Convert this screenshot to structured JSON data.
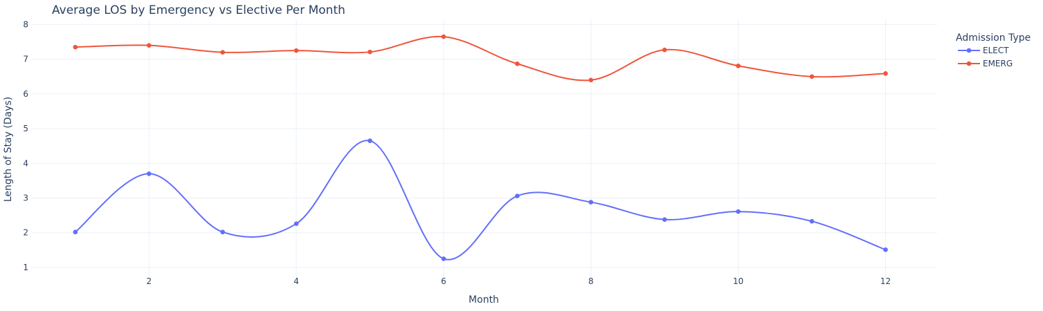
{
  "chart_data": {
    "type": "line",
    "title": "Average LOS by Emergency vs Elective Per Month",
    "xlabel": "Month",
    "ylabel": "Length of Stay (Days)",
    "xlim": [
      0.4,
      12.7
    ],
    "ylim": [
      0.7,
      8.15
    ],
    "x_ticks": [
      2,
      4,
      6,
      8,
      10,
      12
    ],
    "y_ticks": [
      1,
      2,
      3,
      4,
      5,
      6,
      7,
      8
    ],
    "grid": true,
    "legend": {
      "title": "Admission Type",
      "placement": "top-right"
    },
    "x": [
      1,
      2,
      3,
      4,
      5,
      6,
      7,
      8,
      9,
      10,
      11,
      12
    ],
    "series": [
      {
        "name": "ELECT",
        "color": "#636efa",
        "values": [
          2.02,
          3.7,
          2.02,
          2.26,
          4.65,
          1.25,
          3.06,
          2.88,
          2.38,
          2.61,
          2.33,
          1.51
        ]
      },
      {
        "name": "EMERG",
        "color": "#ef553b",
        "values": [
          7.35,
          7.4,
          7.2,
          7.25,
          7.21,
          7.65,
          6.87,
          6.4,
          7.27,
          6.81,
          6.5,
          6.59
        ]
      }
    ]
  }
}
